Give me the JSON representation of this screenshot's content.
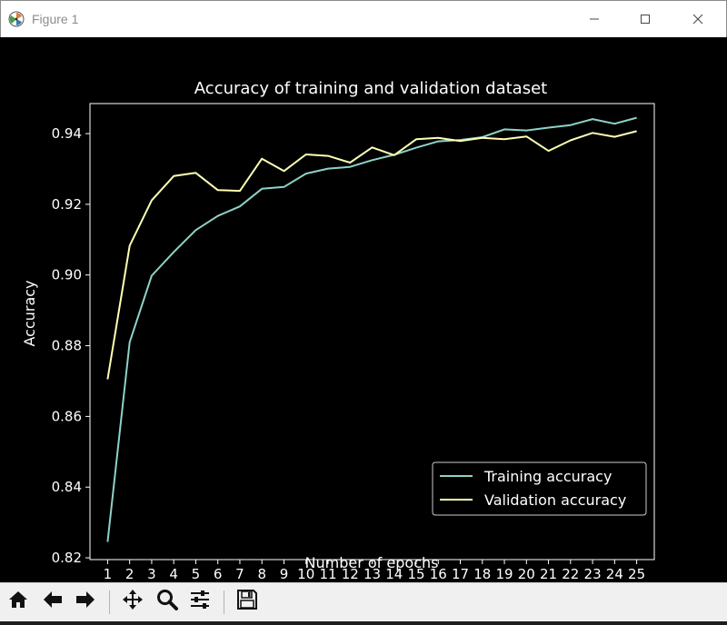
{
  "window": {
    "title": "Figure 1",
    "icons": {
      "app": "matplotlib-logo-icon",
      "minimize": "minimize-icon",
      "maximize": "maximize-icon",
      "close": "close-icon"
    }
  },
  "toolbar": {
    "items": [
      {
        "icon": "home-icon",
        "name": "home"
      },
      {
        "icon": "back-arrow-icon",
        "name": "back"
      },
      {
        "icon": "forward-arrow-icon",
        "name": "forward"
      },
      {
        "icon": "pan-icon",
        "name": "pan"
      },
      {
        "icon": "zoom-magnifier-icon",
        "name": "zoom"
      },
      {
        "icon": "configure-subplots-icon",
        "name": "configure-subplots"
      },
      {
        "icon": "save-floppy-icon",
        "name": "save"
      }
    ]
  },
  "colors": {
    "background": "#000000",
    "axes_edge": "#ffffff",
    "text": "#ffffff",
    "training": "#8dd3c7",
    "validation": "#feffb3"
  },
  "chart_data": {
    "type": "line",
    "title": "Accuracy of training and validation dataset",
    "xlabel": "Number of epochs",
    "ylabel": "Accuracy",
    "x": [
      1,
      2,
      3,
      4,
      5,
      6,
      7,
      8,
      9,
      10,
      11,
      12,
      13,
      14,
      15,
      16,
      17,
      18,
      19,
      20,
      21,
      22,
      23,
      24,
      25
    ],
    "x_ticks": [
      "1",
      "2",
      "3",
      "4",
      "5",
      "6",
      "7",
      "8",
      "9",
      "10",
      "11",
      "12",
      "13",
      "14",
      "15",
      "16",
      "17",
      "18",
      "19",
      "20",
      "21",
      "22",
      "23",
      "24",
      "25"
    ],
    "y_ticks": [
      "0.82",
      "0.84",
      "0.86",
      "0.88",
      "0.90",
      "0.92",
      "0.94"
    ],
    "xlim": [
      0.2,
      25.8
    ],
    "ylim": [
      0.8195,
      0.9485
    ],
    "grid": false,
    "legend_position": "lower-right",
    "series": [
      {
        "name": "Training accuracy",
        "color": "#8dd3c7",
        "values": [
          0.8245,
          0.881,
          0.8998,
          0.9065,
          0.9127,
          0.9167,
          0.9194,
          0.9244,
          0.9249,
          0.9287,
          0.9301,
          0.9306,
          0.9325,
          0.934,
          0.936,
          0.9378,
          0.9382,
          0.939,
          0.9412,
          0.9409,
          0.9417,
          0.9424,
          0.9441,
          0.9428,
          0.9445
        ]
      },
      {
        "name": "Validation accuracy",
        "color": "#feffb3",
        "values": [
          0.8705,
          0.9083,
          0.9211,
          0.928,
          0.9289,
          0.924,
          0.9238,
          0.9329,
          0.9294,
          0.9341,
          0.9337,
          0.9318,
          0.9361,
          0.9339,
          0.9384,
          0.9388,
          0.9379,
          0.9388,
          0.9384,
          0.9392,
          0.9351,
          0.9381,
          0.9402,
          0.9391,
          0.9407
        ]
      }
    ]
  }
}
